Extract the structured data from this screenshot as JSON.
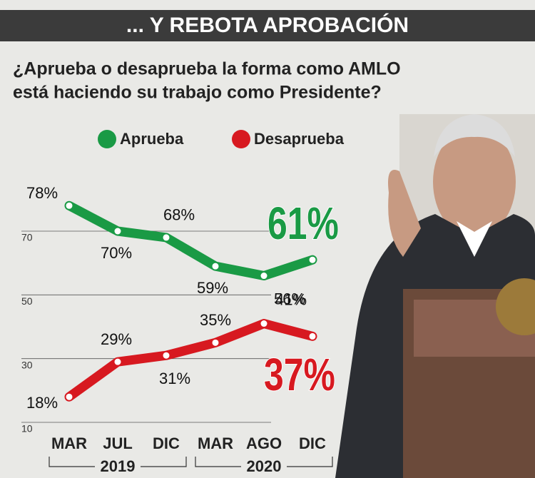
{
  "chart_data": {
    "type": "line",
    "title": "... Y REBOTA APROBACIÓN",
    "subtitle": [
      "¿Aprueba o desaprueba la forma como AMLO",
      "está haciendo su trabajo como Presidente?"
    ],
    "categories": [
      "MAR",
      "JUL",
      "DIC",
      "MAR",
      "AGO",
      "DIC"
    ],
    "groups": [
      {
        "label": "2019",
        "span": [
          0,
          2
        ]
      },
      {
        "label": "2020",
        "span": [
          3,
          5
        ]
      }
    ],
    "series": [
      {
        "name": "Aprueba",
        "color": "#1a9a45",
        "values": [
          78,
          70,
          68,
          59,
          56,
          61
        ],
        "value_labels": [
          "78%",
          "70%",
          "68%",
          "59%",
          "56%",
          "61%"
        ]
      },
      {
        "name": "Desaprueba",
        "color": "#d71920",
        "values": [
          18,
          29,
          31,
          35,
          41,
          37
        ],
        "value_labels": [
          "18%",
          "29%",
          "31%",
          "35%",
          "41%",
          "37%"
        ]
      }
    ],
    "ylim": [
      10,
      85
    ],
    "yticks": [
      10,
      30,
      50,
      70
    ],
    "grid": true
  }
}
